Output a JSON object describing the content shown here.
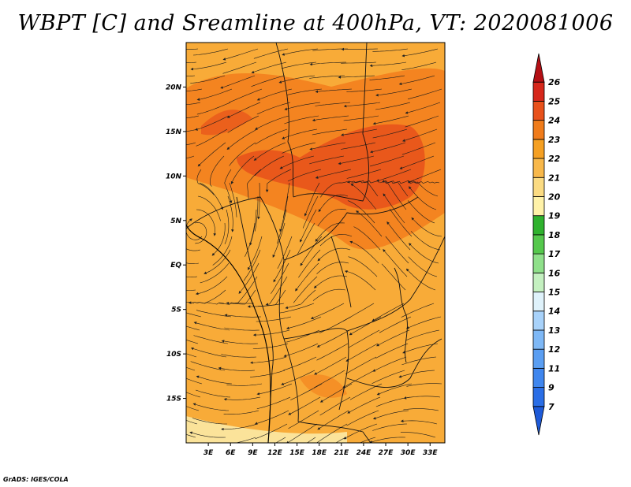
{
  "title": "WBPT [C] and Sreamline at 400hPa, VT: 2020081006",
  "credit": "GrADS: IGES/COLA",
  "map": {
    "lon_range": [
      0,
      35
    ],
    "lat_range": [
      -20,
      25
    ],
    "lon_ticks": [
      3,
      6,
      9,
      12,
      15,
      18,
      21,
      24,
      27,
      30,
      33
    ],
    "lon_labels": [
      "3E",
      "6E",
      "9E",
      "12E",
      "15E",
      "18E",
      "21E",
      "24E",
      "27E",
      "30E",
      "33E"
    ],
    "lat_ticks": [
      20,
      15,
      10,
      5,
      0,
      -5,
      -10,
      -15
    ],
    "lat_labels": [
      "20N",
      "15N",
      "10N",
      "5N",
      "EQ",
      "5S",
      "10S",
      "15S"
    ],
    "background_color": "#f8ab38",
    "warm_color": "#f48420",
    "hot_color": "#e9581b",
    "cool_color": "#fbe39a"
  },
  "colorbar": {
    "labels": [
      "7",
      "9",
      "11",
      "12",
      "13",
      "14",
      "15",
      "16",
      "17",
      "18",
      "19",
      "20",
      "21",
      "22",
      "23",
      "24",
      "25",
      "26"
    ],
    "colors": [
      "#1e5ad8",
      "#2a6ee6",
      "#3f86ee",
      "#5a9ef2",
      "#7eb8f6",
      "#a8d2fa",
      "#dff2fb",
      "#c4f0c0",
      "#8fe08a",
      "#55c84c",
      "#2fb22e",
      "#fff2a8",
      "#fbdb82",
      "#f8b84a",
      "#f5a023",
      "#f07c1b",
      "#e8511b",
      "#d6271b",
      "#b40f14"
    ]
  }
}
